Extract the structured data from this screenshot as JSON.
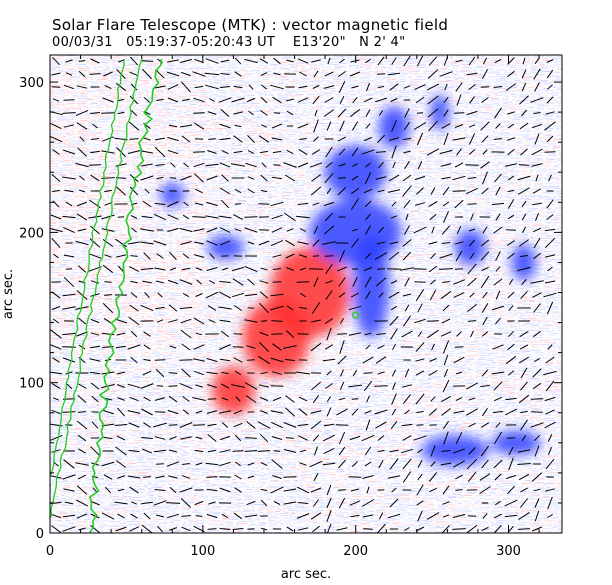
{
  "header": {
    "title": "Solar Flare Telescope (MTK) : vector magnetic field",
    "observation_date": "00/03/31",
    "time_range": "05:19:37-05:20:43 UT",
    "position_ew": "E13'20\"",
    "position_ns": "N 2' 4\""
  },
  "axes": {
    "xlabel": "arc sec.",
    "ylabel": "arc sec.",
    "x_ticks": [
      "0",
      "100",
      "200",
      "300"
    ],
    "y_ticks": [
      "0",
      "100",
      "200",
      "300"
    ],
    "x_range": [
      0,
      335
    ],
    "y_range": [
      0,
      318
    ]
  },
  "colors": {
    "positive_polarity": "#ff3030",
    "negative_polarity": "#3040ff",
    "contour": "#22cc22",
    "vectors": "#000000",
    "background_noise_blue": "#a8b0ff",
    "background_noise_red": "#ff9aa8"
  },
  "magnetogram": {
    "positive_regions": [
      {
        "x": 170,
        "y": 160,
        "rx": 26,
        "ry": 30
      },
      {
        "x": 148,
        "y": 130,
        "rx": 22,
        "ry": 26
      },
      {
        "x": 120,
        "y": 95,
        "rx": 14,
        "ry": 16
      }
    ],
    "negative_regions": [
      {
        "x": 210,
        "y": 165,
        "rx": 12,
        "ry": 35
      },
      {
        "x": 200,
        "y": 200,
        "rx": 30,
        "ry": 22
      },
      {
        "x": 200,
        "y": 240,
        "rx": 20,
        "ry": 18
      },
      {
        "x": 225,
        "y": 270,
        "rx": 10,
        "ry": 14
      },
      {
        "x": 255,
        "y": 280,
        "rx": 6,
        "ry": 12
      },
      {
        "x": 265,
        "y": 55,
        "rx": 22,
        "ry": 10
      },
      {
        "x": 305,
        "y": 60,
        "rx": 16,
        "ry": 8
      },
      {
        "x": 275,
        "y": 190,
        "rx": 10,
        "ry": 12
      },
      {
        "x": 310,
        "y": 180,
        "rx": 8,
        "ry": 12
      },
      {
        "x": 80,
        "y": 225,
        "rx": 8,
        "ry": 8
      },
      {
        "x": 115,
        "y": 190,
        "rx": 12,
        "ry": 8
      }
    ]
  }
}
